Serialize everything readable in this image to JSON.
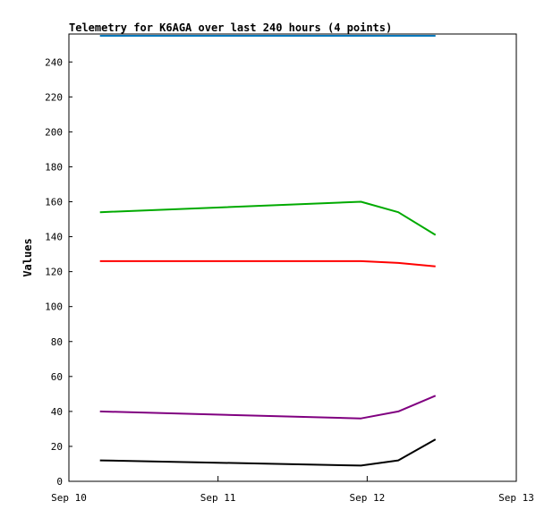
{
  "chart_data": {
    "type": "line",
    "title": "Telemetry for K6AGA over last 240 hours (4 points)",
    "ylabel": "Values",
    "xlabel": "",
    "x_ticks": [
      "Sep 10",
      "Sep 11",
      "Sep 12",
      "Sep 13"
    ],
    "ylim": [
      0,
      256
    ],
    "y_ticks": [
      0,
      20,
      40,
      60,
      80,
      100,
      120,
      140,
      160,
      180,
      200,
      220,
      240
    ],
    "x": [
      "Sep 10 05:00",
      "Sep 11 23:00",
      "Sep 12 05:00",
      "Sep 12 11:00"
    ],
    "series": [
      {
        "color": "#0077bb",
        "values": [
          255,
          255,
          255,
          255
        ]
      },
      {
        "color": "#00aa00",
        "values": [
          154,
          160,
          154,
          141
        ]
      },
      {
        "color": "#ff0000",
        "values": [
          126,
          126,
          125,
          123
        ]
      },
      {
        "color": "#800080",
        "values": [
          40,
          36,
          40,
          49
        ]
      },
      {
        "color": "#000000",
        "values": [
          12,
          9,
          12,
          24
        ]
      }
    ]
  }
}
